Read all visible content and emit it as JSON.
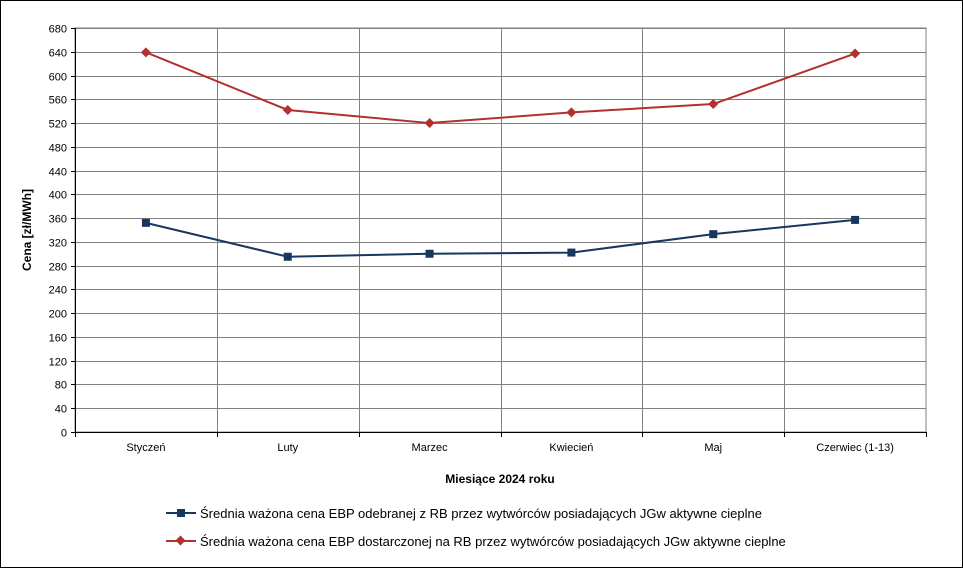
{
  "chart_data": {
    "type": "line",
    "title": "",
    "xlabel": "Miesiące 2024  roku",
    "ylabel": "Cena [zł/MWh]",
    "categories": [
      "Styczeń",
      "Luty",
      "Marzec",
      "Kwiecień",
      "Maj",
      "Czerwiec (1-13)"
    ],
    "ylim": [
      0,
      680
    ],
    "yticks": [
      0,
      40,
      80,
      120,
      160,
      200,
      240,
      280,
      320,
      360,
      400,
      440,
      480,
      520,
      560,
      600,
      640,
      680
    ],
    "grid": true,
    "legend_position": "bottom",
    "series": [
      {
        "name": "Średnia ważona cena EBP odebranej z RB przez wytwórców posiadających JGw aktywne cieplne",
        "color": "#17375E",
        "marker": "square",
        "values": [
          352,
          295,
          300,
          302,
          333,
          357
        ]
      },
      {
        "name": "Średnia ważona cena EBP dostarczonej na RB przez wytwórców posiadających JGw aktywne cieplne",
        "color": "#B3302E",
        "marker": "diamond",
        "values": [
          639,
          542,
          520,
          538,
          552,
          637
        ]
      }
    ]
  }
}
